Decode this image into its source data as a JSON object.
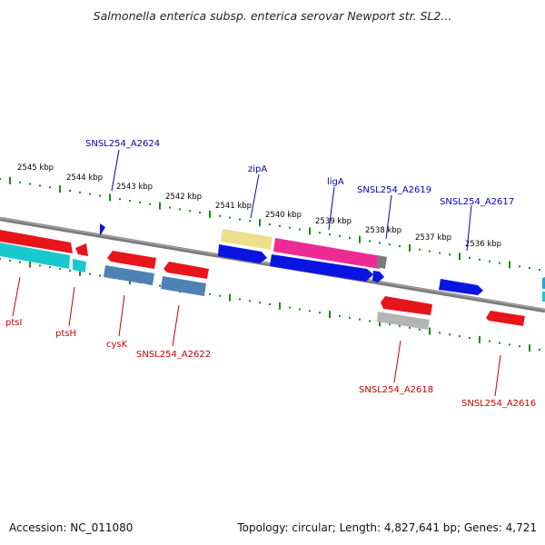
{
  "title": "Salmonella enterica subsp. enterica serovar Newport str. SL2...",
  "footer": {
    "accession": "Accession: NC_011080",
    "summary": "Topology: circular; Length: 4,827,641 bp; Genes: 4,721"
  },
  "scale_labels": [
    "2545 kbp",
    "2544 kbp",
    "2543 kbp",
    "2542 kbp",
    "2541 kbp",
    "2540 kbp",
    "2539 kbp",
    "2538 kbp",
    "2537 kbp",
    "2536 kbp"
  ],
  "top_labels": [
    "SNSL254_A2624",
    "zipA",
    "ligA",
    "SNSL254_A2619",
    "SNSL254_A2617"
  ],
  "bottom_labels": [
    "ptsI",
    "ptsH",
    "cysK",
    "SNSL254_A2622",
    "SNSL254_A2618",
    "SNSL254_A2616"
  ],
  "colors": {
    "backbone": "#7a7a7a",
    "ticks": "#1a8a1a",
    "forward_label": "#0000bb",
    "reverse_label": "#cc0000",
    "red": "#e8141c",
    "cyan": "#19c8cf",
    "steelblue": "#4f82b4",
    "blue": "#0a14e0",
    "khaki": "#eedf8c",
    "magenta": "#ee2a94",
    "gray": "#b4b4b4"
  }
}
